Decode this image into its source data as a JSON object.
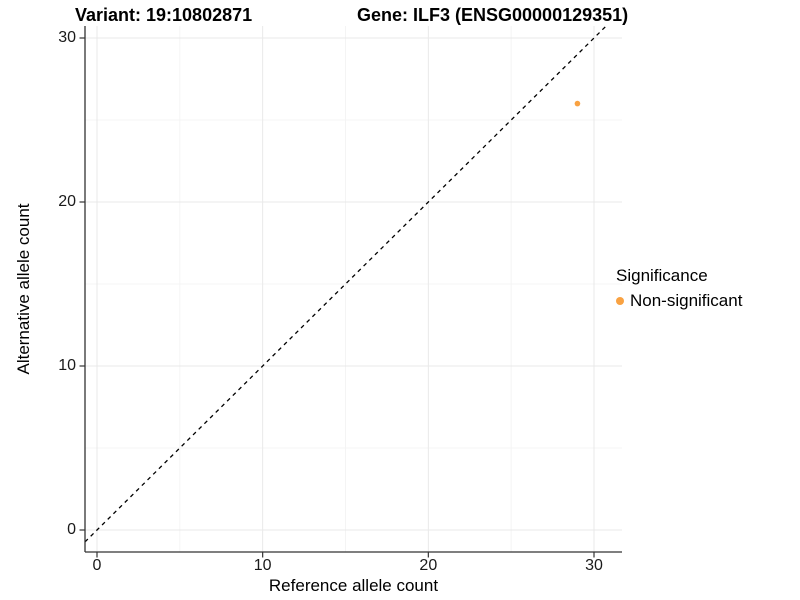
{
  "title": {
    "variant_label": "Variant: 19:10802871",
    "gene_label": "Gene: ILF3 (ENSG00000129351)"
  },
  "chart_data": {
    "type": "scatter",
    "xlabel": "Reference allele count",
    "ylabel": "Alternative allele count",
    "xlim": [
      0,
      30
    ],
    "ylim": [
      0,
      30
    ],
    "x_ticks": [
      0,
      10,
      20,
      30
    ],
    "y_ticks": [
      0,
      10,
      20,
      30
    ],
    "x_minor_ticks": [
      5,
      15,
      25
    ],
    "y_minor_ticks": [
      5,
      15,
      25
    ],
    "grid": "major and minor, light gray on white",
    "points": [
      {
        "x": 29,
        "y": 26,
        "series": "Non-significant"
      }
    ],
    "reference_line": {
      "kind": "identity y=x",
      "style": "dashed",
      "color": "#000000"
    },
    "legend": {
      "position": "right",
      "title": "Significance",
      "items": [
        {
          "label": "Non-significant",
          "color": "#F9A242"
        }
      ]
    }
  },
  "colors": {
    "point": "#F9A242",
    "grid_major": "#e9e9e9",
    "grid_minor": "#f4f4f4",
    "axis": "#333333",
    "background": "#ffffff"
  }
}
